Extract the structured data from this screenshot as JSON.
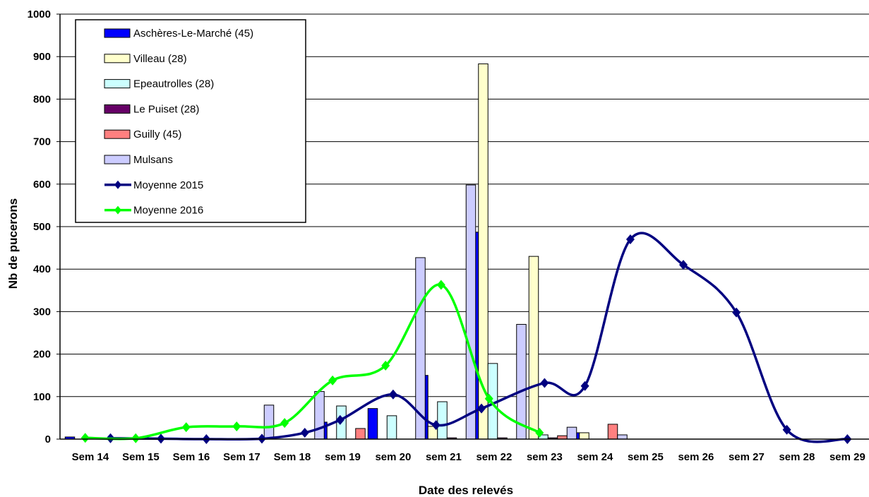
{
  "chart_data": {
    "type": "bar",
    "title": "",
    "xlabel": "Date des relevés",
    "ylabel": "Nb de pucerons",
    "ylim": [
      0,
      1000
    ],
    "yticks": [
      0,
      100,
      200,
      300,
      400,
      500,
      600,
      700,
      800,
      900,
      1000
    ],
    "grid": true,
    "legend_position": "top-left",
    "categories": [
      "Sem 14",
      "Sem 15",
      "Sem 16",
      "Sem 17",
      "Sem 18",
      "sem 19",
      "sem 20",
      "sem 21",
      "sem 22",
      "sem 23",
      "sem 24",
      "sem 25",
      "sem 26",
      "sem 27",
      "sem 28",
      "sem 29"
    ],
    "bar_series": [
      {
        "name": "Aschères-Le-Marché (45)",
        "color": "#0000ff",
        "values": [
          5,
          0,
          0,
          0,
          0,
          40,
          72,
          150,
          487,
          0,
          15,
          0,
          0,
          0,
          0,
          0
        ]
      },
      {
        "name": "Villeau (28)",
        "color": "#ffffcc",
        "values": [
          0,
          0,
          0,
          0,
          0,
          0,
          0,
          30,
          883,
          430,
          15,
          0,
          0,
          0,
          0,
          0
        ]
      },
      {
        "name": "Epeautrolles (28)",
        "color": "#ccffff",
        "values": [
          0,
          0,
          0,
          0,
          0,
          78,
          55,
          88,
          178,
          10,
          0,
          0,
          0,
          0,
          0,
          0
        ]
      },
      {
        "name": "Le Puiset (28)",
        "color": "#660066",
        "values": [
          0,
          0,
          0,
          0,
          0,
          0,
          0,
          3,
          3,
          3,
          0,
          0,
          0,
          0,
          0,
          0
        ]
      },
      {
        "name": "Guilly (45)",
        "color": "#ff8080",
        "values": [
          0,
          0,
          0,
          0,
          0,
          25,
          0,
          0,
          0,
          8,
          35,
          0,
          0,
          0,
          0,
          0
        ]
      },
      {
        "name": "Mulsans",
        "color": "#ccccff",
        "values": [
          0,
          0,
          0,
          80,
          112,
          0,
          427,
          598,
          270,
          28,
          10,
          0,
          0,
          0,
          0,
          0
        ]
      }
    ],
    "line_series": [
      {
        "name": "Moyenne 2015",
        "color": "#000080",
        "x": [
          1,
          2,
          2.9,
          4,
          4.85,
          5.55,
          6.6,
          7.45,
          8.35,
          9.6,
          10.4,
          11.3,
          12.35,
          13.4,
          14.4,
          15.6
        ],
        "values": [
          2,
          1,
          0,
          1,
          15,
          45,
          105,
          33,
          72,
          132,
          125,
          470,
          410,
          298,
          22,
          0
        ]
      },
      {
        "name": "Moyenne 2016",
        "color": "#00ff00",
        "x": [
          0.5,
          1.5,
          2.5,
          3.5,
          4.45,
          5.4,
          6.45,
          7.55,
          8.5,
          9.5
        ],
        "values": [
          3,
          2,
          28,
          30,
          38,
          138,
          173,
          363,
          95,
          15
        ]
      }
    ]
  }
}
